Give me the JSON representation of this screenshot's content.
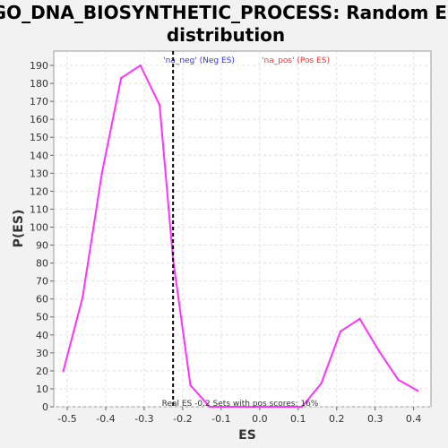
{
  "chart_data": {
    "type": "line",
    "title_line1": "GO_DNA_BIOSYNTHETIC_PROCESS: Random ES",
    "title_line2": "distribution",
    "xlabel": "ES",
    "ylabel": "P(ES)",
    "xlim": [
      -0.535,
      0.445
    ],
    "ylim": [
      0,
      198
    ],
    "x_ticks": [
      -0.5,
      -0.4,
      -0.3,
      -0.2,
      -0.1,
      0.0,
      0.1,
      0.2,
      0.3,
      0.4
    ],
    "x_tick_labels": [
      "-0.5",
      "-0.4",
      "-0.3",
      "-0.2",
      "-0.1",
      "0.0",
      "0.1",
      "0.2",
      "0.3",
      "0.4"
    ],
    "y_ticks": [
      0,
      10,
      20,
      30,
      40,
      50,
      60,
      70,
      80,
      90,
      100,
      110,
      120,
      130,
      140,
      150,
      160,
      170,
      180,
      190
    ],
    "grid": true,
    "series": [
      {
        "color": "#ff33ff",
        "x": [
          -0.51,
          -0.46,
          -0.41,
          -0.36,
          -0.31,
          -0.26,
          -0.225,
          -0.18,
          -0.13,
          -0.08,
          -0.03,
          0.02,
          0.07,
          0.11,
          0.16,
          0.21,
          0.26,
          0.31,
          0.36,
          0.41
        ],
        "y": [
          20,
          61,
          130,
          183,
          190,
          168,
          82,
          12,
          0,
          0,
          0,
          0,
          0,
          0,
          13,
          42,
          49,
          31,
          15,
          9
        ]
      }
    ],
    "real_es": {
      "x": -0.225,
      "color": "#000000"
    },
    "legend": [
      {
        "label": "'na_neg' (Neg ES)",
        "color": "#3333ff"
      },
      {
        "label": "'na_pos' (Pos ES)",
        "color": "#ff3333"
      }
    ],
    "annotation": "Real ES -0.2   Sets with pos scores: 16%"
  }
}
